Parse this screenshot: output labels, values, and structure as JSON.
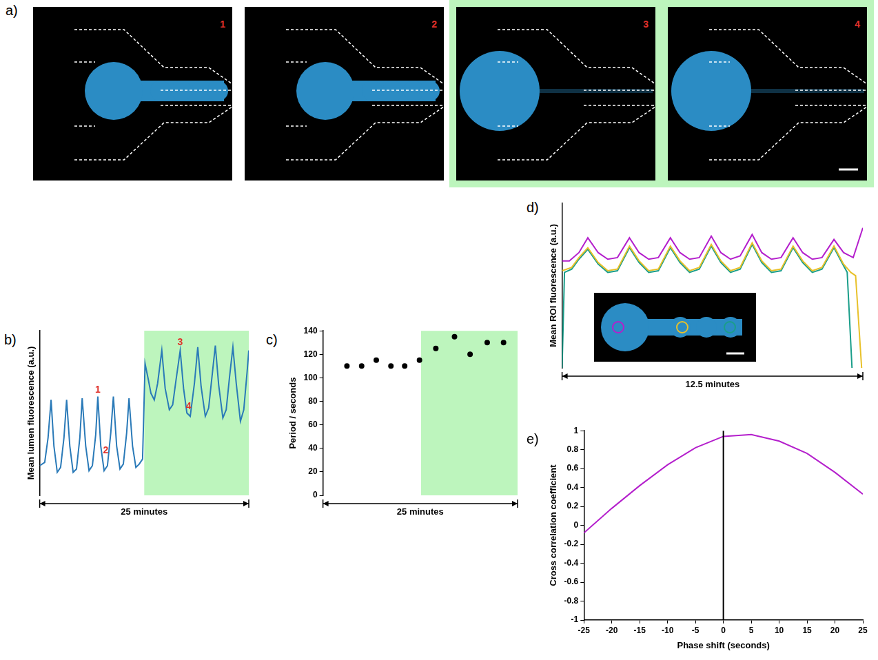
{
  "image_panel": {
    "label": "a)",
    "highlight_color": "#bdf5bd",
    "number_color": "#e0302a",
    "frames": [
      {
        "number": "1",
        "highlight": false
      },
      {
        "number": "2",
        "highlight": false
      },
      {
        "number": "3",
        "highlight": true
      },
      {
        "number": "4",
        "highlight": true
      }
    ]
  },
  "chart_data": [
    {
      "label": "b)",
      "type": "line",
      "ylabel": "Mean lumen fluorescence (a.u.)",
      "xlabel": "25 minutes",
      "xlim": [
        0,
        25
      ],
      "ylim": [
        0,
        100
      ],
      "tick_labels": false,
      "grid": false,
      "shaded_region": {
        "from": 12.5,
        "to": 25,
        "color": "#bdf5bd"
      },
      "annotations": [
        {
          "text": "1",
          "x": 6.95,
          "y": 64,
          "color": "#e0302a"
        },
        {
          "text": "2",
          "x": 7.9,
          "y": 27,
          "color": "#e0302a"
        },
        {
          "text": "3",
          "x": 16.8,
          "y": 93,
          "color": "#e0302a"
        },
        {
          "text": "4",
          "x": 17.8,
          "y": 54,
          "color": "#e0302a"
        }
      ],
      "series": [
        {
          "color": "#2a7ab8",
          "x": [
            0,
            0.6,
            1.0,
            1.36,
            1.7,
            2.1,
            2.5,
            2.9,
            3.22,
            3.6,
            4.0,
            4.4,
            4.8,
            5.08,
            5.5,
            5.9,
            6.3,
            6.7,
            6.95,
            7.3,
            7.7,
            8.1,
            8.5,
            8.81,
            9.2,
            9.6,
            10.0,
            10.4,
            10.68,
            11.1,
            11.5,
            11.9,
            12.3,
            12.6,
            13.0,
            13.3,
            13.7,
            14.1,
            14.6,
            15.0,
            15.5,
            15.9,
            16.3,
            16.8,
            17.2,
            17.6,
            18.0,
            18.5,
            18.9,
            19.3,
            19.8,
            20.2,
            20.6,
            21.0,
            21.4,
            21.9,
            22.3,
            22.7,
            23.1,
            23.5,
            24.0,
            24.4,
            24.8,
            25
          ],
          "values": [
            18,
            20,
            35,
            58,
            30,
            14,
            17,
            35,
            58,
            30,
            14,
            16,
            35,
            59,
            30,
            15,
            18,
            37,
            60,
            30,
            15,
            18,
            38,
            60,
            30,
            16,
            19,
            38,
            59,
            30,
            17,
            19,
            22,
            80,
            70,
            62,
            58,
            68,
            88,
            65,
            52,
            55,
            70,
            88,
            65,
            50,
            48,
            68,
            90,
            66,
            48,
            53,
            72,
            91,
            67,
            47,
            52,
            72,
            90,
            68,
            45,
            52,
            75,
            88
          ]
        }
      ]
    },
    {
      "label": "c)",
      "type": "scatter",
      "ylabel": "Period / seconds",
      "xlabel": "25 minutes",
      "xlim": [
        0,
        25
      ],
      "ylim": [
        0,
        140
      ],
      "yticks": [
        0,
        20,
        40,
        60,
        80,
        100,
        120,
        140
      ],
      "tick_labels": "y",
      "grid": false,
      "shaded_region": {
        "from": 12.6,
        "to": 25,
        "color": "#bdf5bd"
      },
      "series": [
        {
          "color": "#000000",
          "marker": "circle",
          "x": [
            3.08,
            4.97,
            6.85,
            8.73,
            10.5,
            12.4,
            14.5,
            16.9,
            18.9,
            21.1,
            23.2
          ],
          "values": [
            110,
            110,
            115,
            110,
            110,
            115,
            125,
            135,
            120,
            130,
            130
          ]
        }
      ]
    },
    {
      "label": "d)",
      "type": "line",
      "ylabel": "Mean ROI fluorescence (a.u.)",
      "xlabel": "12.5 minutes",
      "xlim": [
        0,
        12.5
      ],
      "ylim": [
        0,
        100
      ],
      "tick_labels": false,
      "grid": false,
      "inset": {
        "roi_colors": [
          "#b41fcc",
          "#e8c12a",
          "#1a9e8a"
        ]
      },
      "series": [
        {
          "color": "#b41fcc",
          "x": [
            0,
            0.3,
            0.7,
            1.07,
            1.5,
            1.9,
            2.3,
            2.8,
            3.2,
            3.6,
            4.0,
            4.5,
            4.9,
            5.3,
            5.7,
            6.2,
            6.6,
            7.0,
            7.4,
            7.9,
            8.3,
            8.7,
            9.1,
            9.6,
            10.0,
            10.4,
            10.8,
            11.3,
            11.7,
            12.1,
            12.5
          ],
          "values": [
            65,
            65,
            70,
            79,
            70,
            66,
            67,
            79,
            70,
            66,
            67,
            79,
            70,
            66,
            67,
            80,
            70,
            66,
            68,
            81,
            70,
            66,
            67,
            79,
            70,
            66,
            67,
            78,
            70,
            67,
            85
          ]
        },
        {
          "color": "#e8c12a",
          "x": [
            0,
            0.4,
            0.7,
            1.07,
            1.5,
            1.9,
            2.3,
            2.8,
            3.2,
            3.6,
            4.0,
            4.5,
            4.9,
            5.3,
            5.7,
            6.2,
            6.6,
            7.0,
            7.4,
            7.9,
            8.3,
            8.7,
            9.1,
            9.6,
            10.0,
            10.4,
            10.8,
            11.3,
            11.7,
            12.0,
            12.2,
            12.45
          ],
          "values": [
            59,
            61,
            67,
            73,
            64,
            59,
            60,
            74,
            65,
            59,
            60,
            74,
            65,
            59,
            61,
            75,
            65,
            59,
            61,
            76,
            65,
            59,
            60,
            74,
            65,
            59,
            61,
            74,
            63,
            58,
            56,
            0
          ]
        },
        {
          "color": "#1a9e8a",
          "x": [
            0,
            0.1,
            0.4,
            0.7,
            1.07,
            1.5,
            1.9,
            2.3,
            2.8,
            3.2,
            3.6,
            4.0,
            4.5,
            4.9,
            5.3,
            5.7,
            6.2,
            6.6,
            7.0,
            7.4,
            7.9,
            8.3,
            8.7,
            9.1,
            9.6,
            10.0,
            10.4,
            10.8,
            11.3,
            11.7,
            11.85,
            12.05
          ],
          "values": [
            0,
            58,
            60,
            66,
            72,
            63,
            58,
            59,
            73,
            64,
            58,
            59,
            73,
            64,
            58,
            60,
            74,
            64,
            58,
            60,
            75,
            64,
            58,
            59,
            73,
            64,
            58,
            60,
            73,
            62,
            58,
            0
          ]
        }
      ]
    },
    {
      "label": "e)",
      "type": "line",
      "ylabel": "Cross correlation coefficient",
      "xlabel": "Phase shift (seconds)",
      "xlim": [
        -25,
        25
      ],
      "xticks": [
        -25,
        -20,
        -15,
        -10,
        -5,
        0,
        5,
        10,
        15,
        20,
        25
      ],
      "ylim": [
        -1,
        1
      ],
      "yticks": [
        -1,
        -0.8,
        -0.6,
        -0.4,
        -0.2,
        0,
        0.2,
        0.4,
        0.6,
        0.8,
        1
      ],
      "tick_labels": true,
      "grid": false,
      "vertical_line": {
        "x": 0,
        "color": "#000000"
      },
      "series": [
        {
          "color": "#b41fcc",
          "x": [
            -25,
            -20,
            -15,
            -10,
            -5,
            0,
            5,
            10,
            15,
            20,
            25
          ],
          "values": [
            -0.08,
            0.18,
            0.42,
            0.64,
            0.82,
            0.94,
            0.96,
            0.89,
            0.76,
            0.56,
            0.33
          ]
        }
      ]
    }
  ]
}
